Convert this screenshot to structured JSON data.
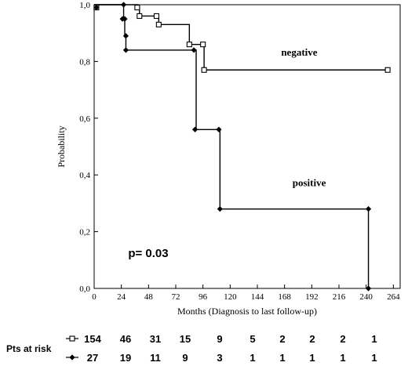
{
  "chart_data": {
    "type": "line",
    "title": "",
    "xlabel": "Months (Diagnosis to last follow-up)",
    "ylabel": "Probability",
    "xlim": [
      0,
      270
    ],
    "ylim": [
      0,
      1
    ],
    "x_ticks": [
      0,
      24,
      48,
      72,
      96,
      120,
      144,
      168,
      192,
      216,
      240,
      264
    ],
    "x_tick_labels": [
      "0",
      "24",
      "48",
      "72",
      "96",
      "120",
      "144",
      "168",
      "192",
      "216",
      "240",
      "264"
    ],
    "y_ticks": [
      0,
      0.2,
      0.4,
      0.6,
      0.8,
      1.0
    ],
    "y_tick_labels": [
      "0,0",
      "0,2",
      "0,4",
      "0,6",
      "0,8",
      "1,0"
    ],
    "grid": false,
    "series": [
      {
        "name": "negative",
        "marker": "open-square",
        "steps": [
          [
            0,
            1.0
          ],
          [
            38,
            0.99
          ],
          [
            40,
            0.96
          ],
          [
            55,
            0.96
          ],
          [
            57,
            0.93
          ],
          [
            82,
            0.93
          ],
          [
            84,
            0.86
          ],
          [
            96,
            0.86
          ],
          [
            97,
            0.77
          ],
          [
            259,
            0.77
          ]
        ],
        "markers": [
          [
            2,
            0.99
          ],
          [
            38,
            0.99
          ],
          [
            40,
            0.96
          ],
          [
            55,
            0.96
          ],
          [
            57,
            0.93
          ],
          [
            84,
            0.86
          ],
          [
            96,
            0.86
          ],
          [
            97,
            0.77
          ],
          [
            259,
            0.77
          ]
        ]
      },
      {
        "name": "positive",
        "marker": "filled-diamond",
        "steps": [
          [
            0,
            1.0
          ],
          [
            26,
            1.0
          ],
          [
            26,
            0.95
          ],
          [
            27,
            0.89
          ],
          [
            28,
            0.84
          ],
          [
            89,
            0.84
          ],
          [
            90,
            0.56
          ],
          [
            110,
            0.56
          ],
          [
            111,
            0.28
          ],
          [
            242,
            0.28
          ],
          [
            242,
            0.0
          ]
        ],
        "markers": [
          [
            2,
            0.99
          ],
          [
            25,
            0.95
          ],
          [
            26,
            1.0
          ],
          [
            27,
            0.95
          ],
          [
            28,
            0.89
          ],
          [
            28,
            0.84
          ],
          [
            88,
            0.84
          ],
          [
            89,
            0.56
          ],
          [
            110,
            0.56
          ],
          [
            111,
            0.28
          ],
          [
            242,
            0.28
          ],
          [
            242,
            0.0
          ]
        ]
      }
    ],
    "annotations": [
      {
        "text": "negative",
        "x": 165,
        "y": 0.82
      },
      {
        "text": "positive",
        "x": 175,
        "y": 0.36
      },
      {
        "text": "p= 0.03",
        "x": 30,
        "y": 0.11
      }
    ],
    "risk_table": {
      "label": "Pts at risk",
      "rows": [
        {
          "series": "negative",
          "values": [
            "154",
            "46",
            "31",
            "15",
            "9",
            "5",
            "2",
            "2",
            "2",
            "1"
          ]
        },
        {
          "series": "positive",
          "values": [
            "27",
            "19",
            "11",
            "9",
            "3",
            "1",
            "1",
            "1",
            "1",
            "1"
          ]
        }
      ]
    }
  }
}
